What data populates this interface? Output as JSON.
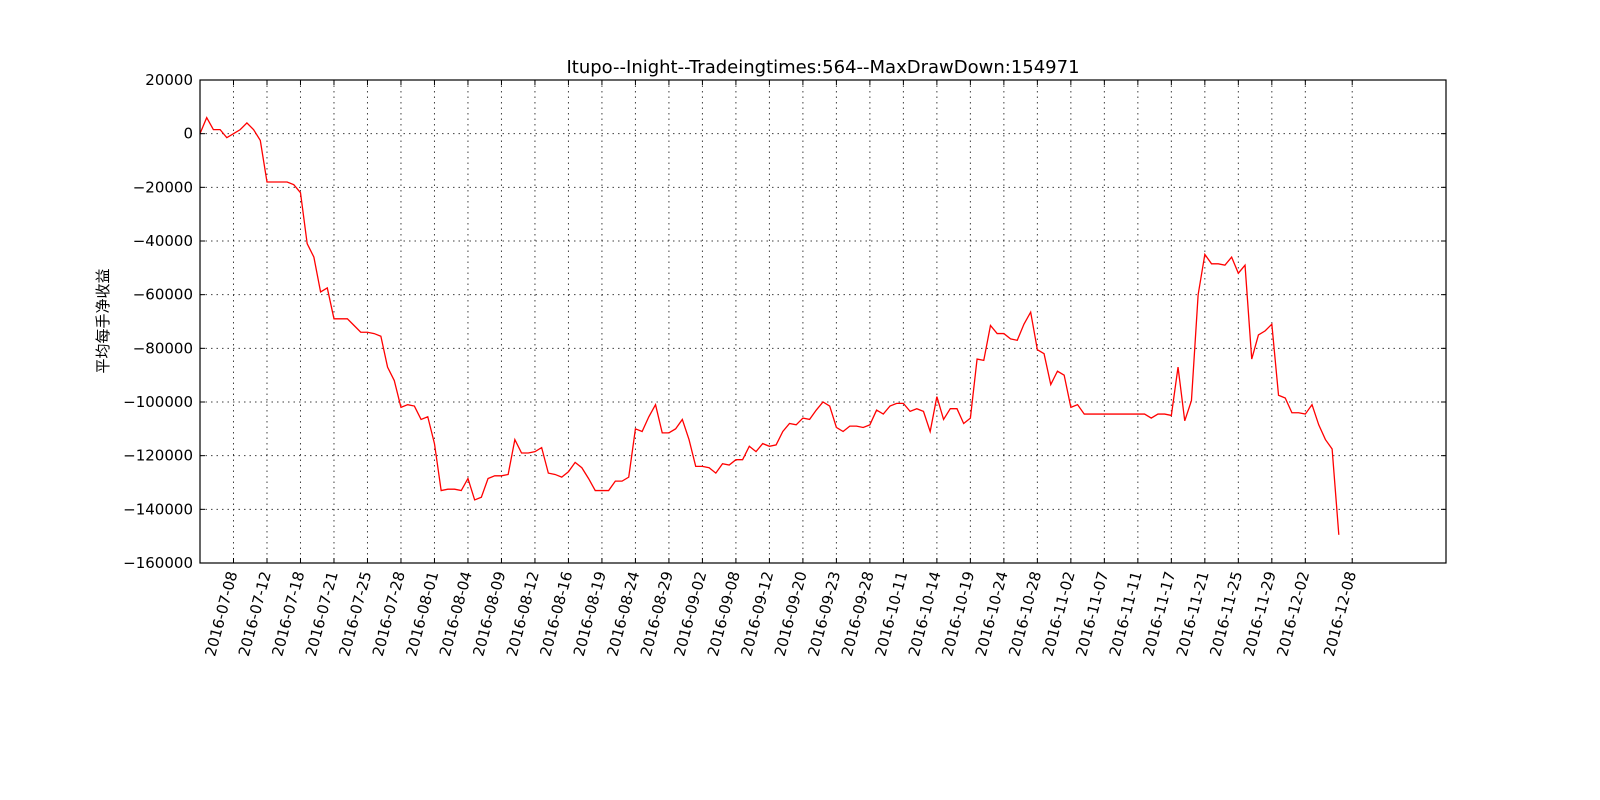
{
  "chart_data": {
    "type": "line",
    "title": "Itupo--Inight--Tradeingtimes:564--MaxDrawDown:154971",
    "xlabel": "",
    "ylabel": "平均每手净收益",
    "ylim": [
      -160000,
      20000
    ],
    "y_ticks": [
      20000,
      0,
      -20000,
      -40000,
      -60000,
      -80000,
      -100000,
      -120000,
      -140000,
      -160000
    ],
    "y_tick_labels": [
      "20000",
      "0",
      "−20000",
      "−40000",
      "−60000",
      "−80000",
      "−100000",
      "−120000",
      "−140000",
      "−160000"
    ],
    "grid": true,
    "color": "#ff0000",
    "x_ticks": [
      {
        "index": 5,
        "label": "2016-07-08"
      },
      {
        "index": 10,
        "label": "2016-07-12"
      },
      {
        "index": 15,
        "label": "2016-07-18"
      },
      {
        "index": 20,
        "label": "2016-07-21"
      },
      {
        "index": 25,
        "label": "2016-07-25"
      },
      {
        "index": 30,
        "label": "2016-07-28"
      },
      {
        "index": 35,
        "label": "2016-08-01"
      },
      {
        "index": 40,
        "label": "2016-08-04"
      },
      {
        "index": 45,
        "label": "2016-08-09"
      },
      {
        "index": 50,
        "label": "2016-08-12"
      },
      {
        "index": 55,
        "label": "2016-08-16"
      },
      {
        "index": 60,
        "label": "2016-08-19"
      },
      {
        "index": 65,
        "label": "2016-08-24"
      },
      {
        "index": 70,
        "label": "2016-08-29"
      },
      {
        "index": 75,
        "label": "2016-09-02"
      },
      {
        "index": 80,
        "label": "2016-09-08"
      },
      {
        "index": 85,
        "label": "2016-09-12"
      },
      {
        "index": 90,
        "label": "2016-09-20"
      },
      {
        "index": 95,
        "label": "2016-09-23"
      },
      {
        "index": 100,
        "label": "2016-09-28"
      },
      {
        "index": 105,
        "label": "2016-10-11"
      },
      {
        "index": 110,
        "label": "2016-10-14"
      },
      {
        "index": 115,
        "label": "2016-10-19"
      },
      {
        "index": 120,
        "label": "2016-10-24"
      },
      {
        "index": 125,
        "label": "2016-10-28"
      },
      {
        "index": 130,
        "label": "2016-11-02"
      },
      {
        "index": 135,
        "label": "2016-11-07"
      },
      {
        "index": 140,
        "label": "2016-11-11"
      },
      {
        "index": 145,
        "label": "2016-11-17"
      },
      {
        "index": 150,
        "label": "2016-11-21"
      },
      {
        "index": 155,
        "label": "2016-11-25"
      },
      {
        "index": 160,
        "label": "2016-11-29"
      },
      {
        "index": 165,
        "label": "2016-12-02"
      },
      {
        "index": 172,
        "label": "2016-12-08"
      }
    ],
    "xlim": [
      0,
      186
    ],
    "series": [
      {
        "values": [
          0,
          6000,
          1500,
          1500,
          -1500,
          0,
          1500,
          4000,
          1500,
          -2500,
          -18000,
          -18000,
          -18000,
          -18000,
          -19000,
          -22000,
          -41000,
          -46000,
          -59000,
          -57500,
          -69000,
          -69000,
          -69000,
          -71500,
          -74000,
          -74000,
          -74500,
          -75500,
          -87000,
          -92000,
          -102000,
          -101000,
          -101500,
          -106500,
          -105500,
          -115500,
          -133000,
          -132500,
          -132500,
          -133000,
          -128500,
          -136500,
          -135500,
          -128500,
          -127500,
          -127500,
          -127000,
          -114000,
          -119000,
          -119000,
          -118500,
          -117000,
          -126500,
          -127000,
          -128000,
          -126000,
          -122500,
          -124500,
          -128500,
          -133000,
          -133000,
          -133000,
          -129500,
          -129500,
          -128000,
          -110000,
          -111000,
          -105500,
          -101000,
          -111500,
          -111500,
          -110000,
          -106500,
          -114000,
          -124000,
          -124000,
          -124500,
          -126500,
          -123000,
          -123500,
          -121500,
          -121500,
          -116500,
          -118500,
          -115500,
          -116500,
          -116000,
          -111000,
          -108000,
          -108500,
          -106000,
          -106500,
          -103000,
          -100000,
          -101500,
          -109500,
          -111000,
          -109000,
          -109000,
          -109500,
          -108500,
          -103000,
          -104500,
          -101500,
          -100500,
          -100500,
          -103500,
          -102500,
          -103500,
          -111000,
          -98000,
          -106500,
          -102500,
          -102500,
          -108000,
          -106000,
          -84000,
          -84500,
          -71500,
          -74500,
          -74500,
          -76500,
          -77000,
          -71000,
          -66500,
          -80500,
          -82000,
          -93500,
          -88500,
          -90000,
          -102000,
          -101000,
          -104500,
          -104500,
          -104500,
          -104500,
          -104500,
          -104500,
          -104500,
          -104500,
          -104500,
          -104500,
          -106000,
          -104500,
          -104500,
          -105000,
          -87000,
          -107000,
          -99500,
          -60000,
          -45000,
          -48500,
          -48500,
          -49000,
          -46000,
          -52000,
          -49000,
          -84000,
          -75000,
          -73500,
          -71000,
          -97500,
          -98500,
          -104000,
          -104000,
          -104500,
          -101000,
          -108500,
          -114000,
          -117500,
          -149500
        ]
      }
    ]
  }
}
